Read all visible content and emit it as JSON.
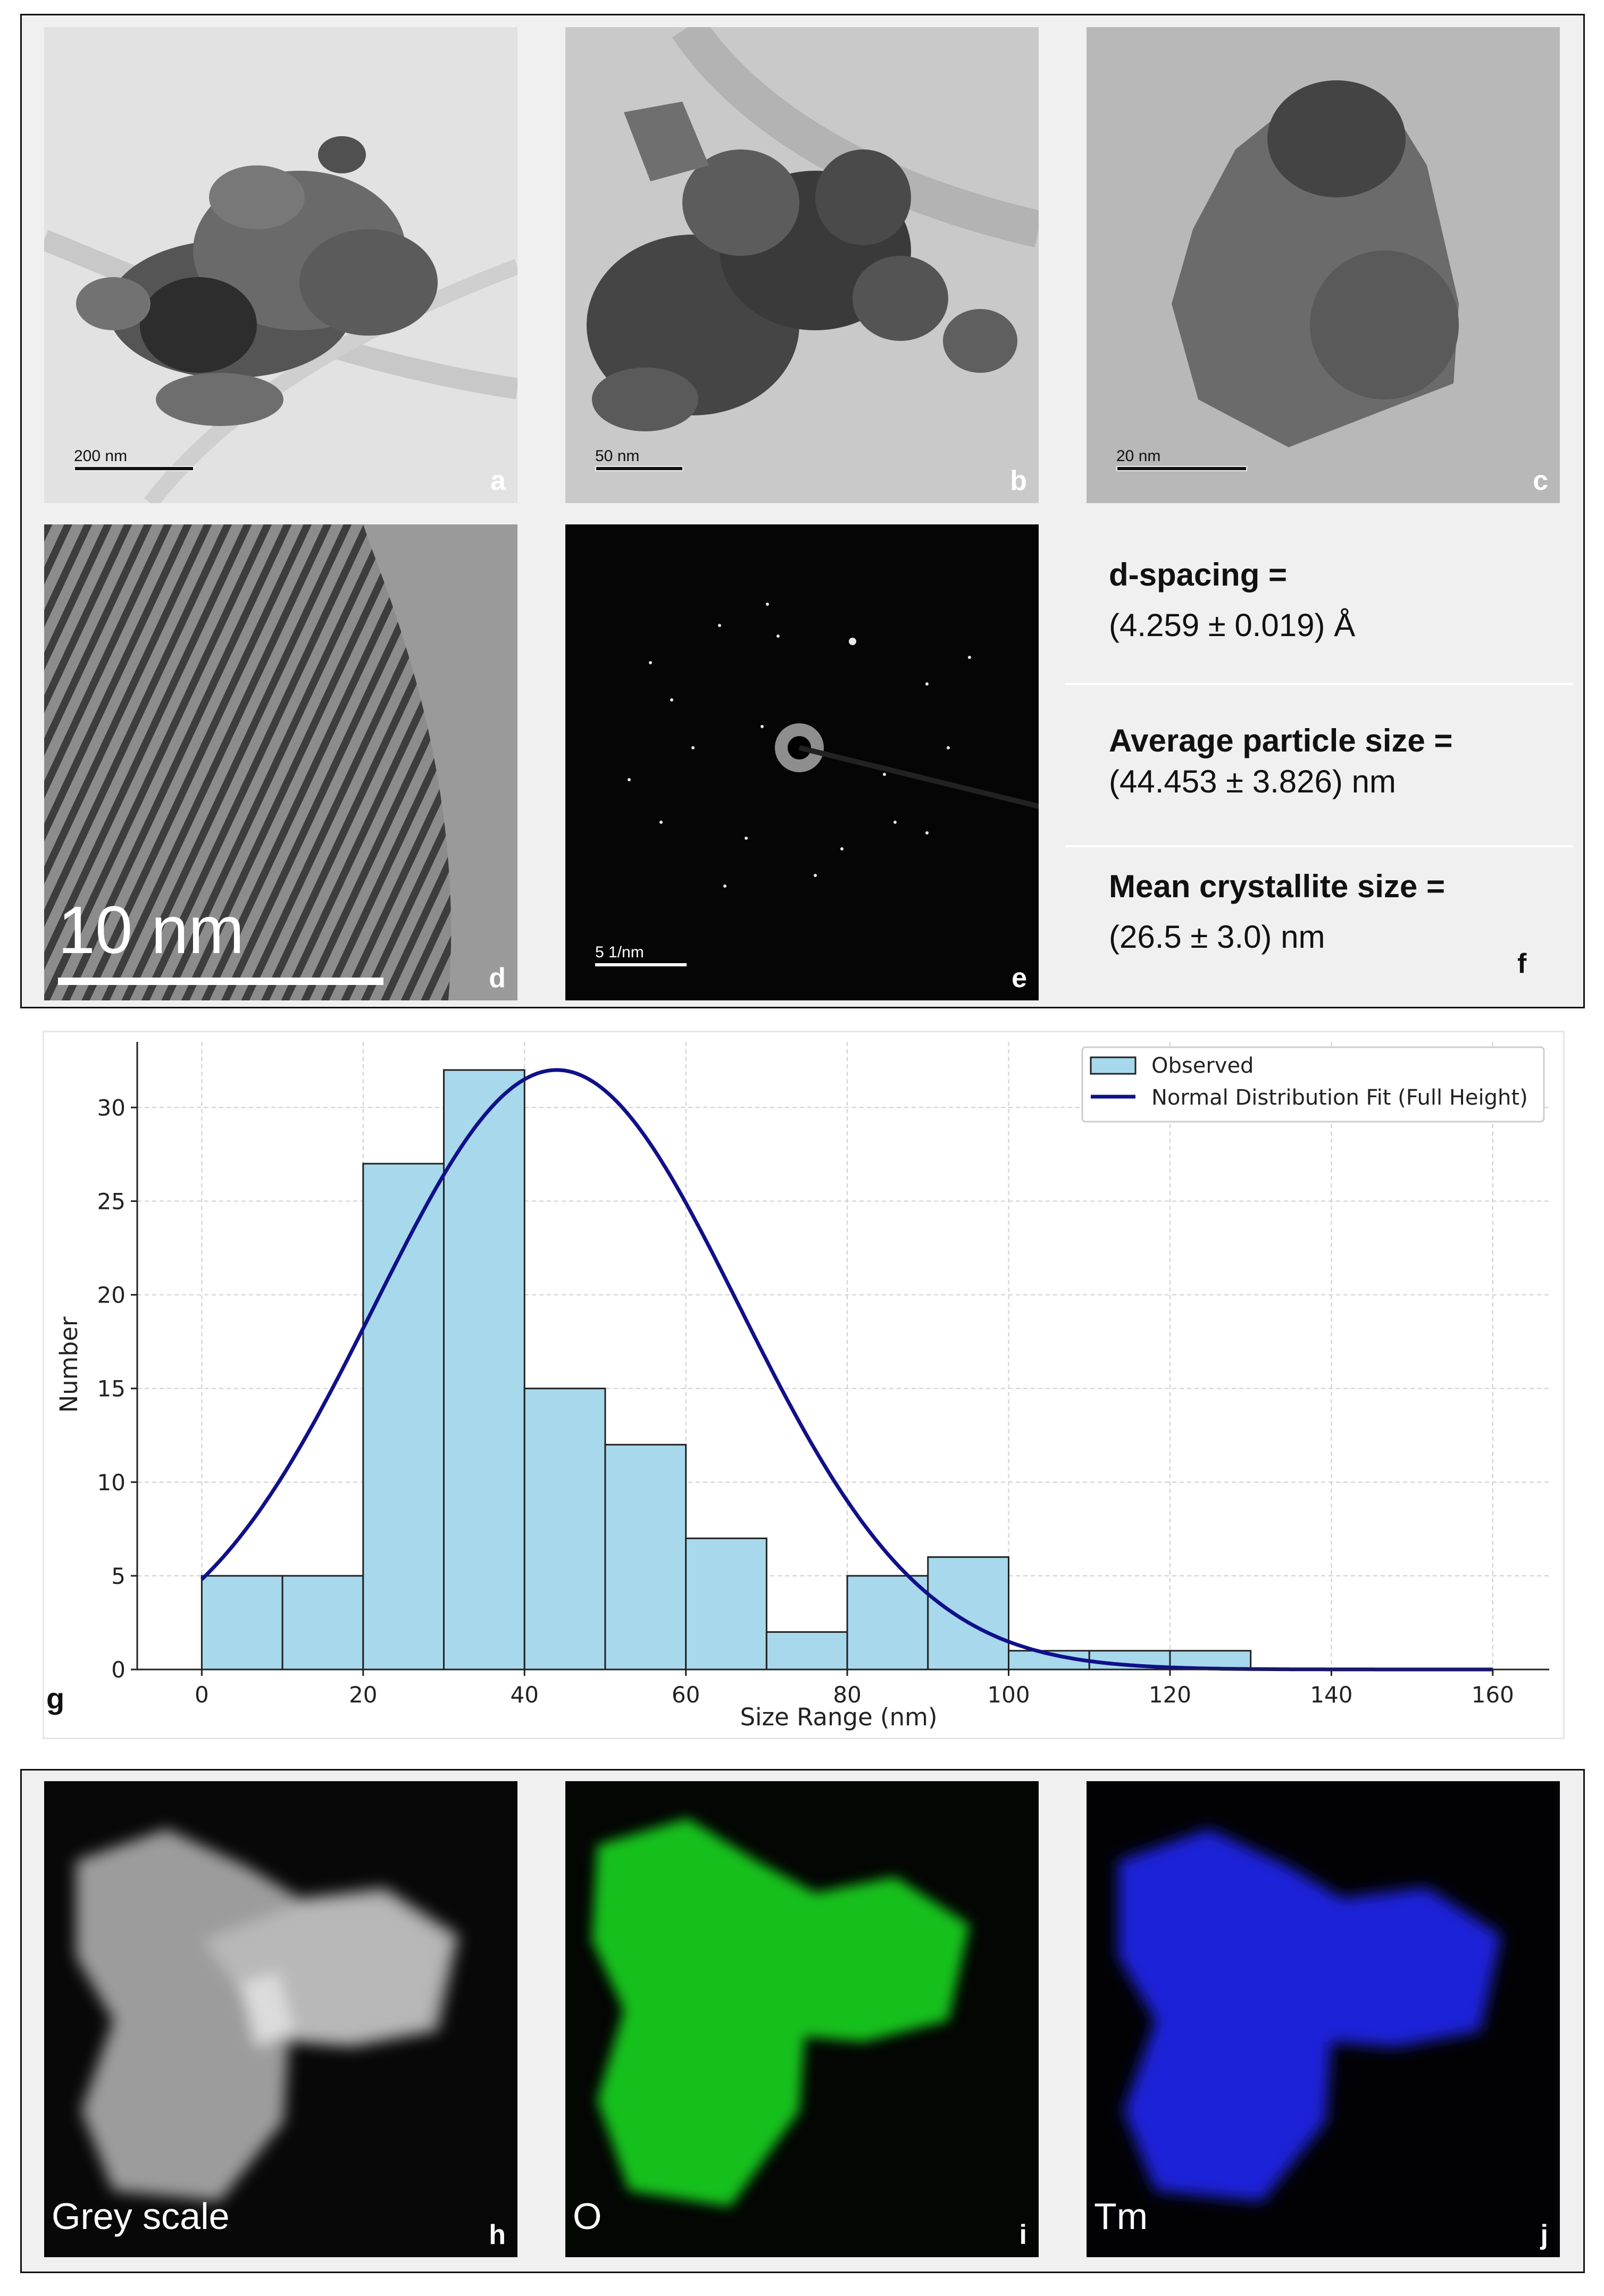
{
  "panels": {
    "a": {
      "label": "a",
      "scale_text": "200 nm"
    },
    "b": {
      "label": "b",
      "scale_text": "50 nm"
    },
    "c": {
      "label": "c",
      "scale_text": "20 nm"
    },
    "d": {
      "label": "d",
      "scale_text": "10 nm"
    },
    "e": {
      "label": "e",
      "scale_text": "5 1/nm"
    },
    "f": {
      "label": "f",
      "d_spacing_key": "d-spacing =",
      "d_spacing_val": "(4.259 ± 0.019) Å",
      "particle_key": "Average particle size =",
      "particle_val": "(44.453 ± 3.826) nm",
      "crystallite_key": "Mean crystallite size =",
      "crystallite_val": "(26.5 ± 3.0) nm"
    },
    "g": {
      "label": "g"
    },
    "h": {
      "label": "h",
      "caption": "Grey scale"
    },
    "i": {
      "label": "i",
      "caption": "O"
    },
    "j": {
      "label": "j",
      "caption": "Tm"
    }
  },
  "colors": {
    "bar_fill": "#a8d8ec",
    "fit_line": "#10108a",
    "o_map": "#19c01f",
    "tm_map": "#1c24d8"
  },
  "chart_data": {
    "type": "bar",
    "xlabel": "Size Range (nm)",
    "ylabel": "Number",
    "xlim": [
      -8,
      167
    ],
    "ylim": [
      0,
      33.5
    ],
    "xticks": [
      0,
      20,
      40,
      60,
      80,
      100,
      120,
      140,
      160
    ],
    "yticks": [
      0,
      5,
      10,
      15,
      20,
      25,
      30
    ],
    "grid": true,
    "legend_position": "top-right",
    "bins": [
      [
        0,
        10
      ],
      [
        10,
        20
      ],
      [
        20,
        30
      ],
      [
        30,
        40
      ],
      [
        40,
        50
      ],
      [
        50,
        60
      ],
      [
        60,
        70
      ],
      [
        70,
        80
      ],
      [
        80,
        90
      ],
      [
        90,
        100
      ],
      [
        100,
        110
      ],
      [
        110,
        120
      ],
      [
        120,
        130
      ]
    ],
    "series": [
      {
        "name": "Observed",
        "type": "bar",
        "values": [
          5,
          5,
          27,
          32,
          15,
          12,
          7,
          2,
          5,
          6,
          1,
          1,
          1
        ]
      },
      {
        "name": "Normal Distribution Fit (Full Height)",
        "type": "line",
        "mean": 44,
        "std": 22.6,
        "peak": 32,
        "x_range": [
          0,
          160
        ]
      }
    ]
  }
}
